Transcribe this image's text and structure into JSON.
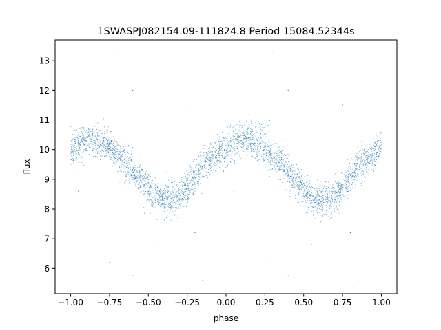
{
  "chart_data": {
    "type": "scatter",
    "title": "1SWASPJ082154.09-111824.8 Period 15084.52344s",
    "xlabel": "phase",
    "ylabel": "flux",
    "xlim": [
      -1.1,
      1.1
    ],
    "ylim": [
      5.15,
      13.7
    ],
    "x_ticks": [
      -1.0,
      -0.75,
      -0.5,
      -0.25,
      0.0,
      0.25,
      0.5,
      0.75,
      1.0
    ],
    "x_tick_labels": [
      "−1.00",
      "−0.75",
      "−0.50",
      "−0.25",
      "0.00",
      "0.25",
      "0.50",
      "0.75",
      "1.00"
    ],
    "y_ticks": [
      6,
      7,
      8,
      9,
      10,
      11,
      12,
      13
    ],
    "y_tick_labels": [
      "6",
      "7",
      "8",
      "9",
      "10",
      "11",
      "12",
      "13"
    ],
    "grid": false,
    "legend": "none",
    "point_color": "#1f77b4",
    "series": [
      {
        "x": [
          -1.0,
          -0.95,
          -0.9,
          -0.85,
          -0.8,
          -0.75,
          -0.7,
          -0.65,
          -0.6,
          -0.55,
          -0.5,
          -0.45,
          -0.4,
          -0.35,
          -0.3,
          -0.25,
          -0.2,
          -0.15,
          -0.1,
          -0.05,
          0.0,
          0.05,
          0.1,
          0.15,
          0.2,
          0.25,
          0.3,
          0.35,
          0.4,
          0.45,
          0.5,
          0.55,
          0.6,
          0.65,
          0.7,
          0.75,
          0.8,
          0.85,
          0.9,
          0.95,
          1.0
        ],
        "y": [
          10.0,
          10.2,
          10.3,
          10.3,
          10.2,
          10.1,
          9.8,
          9.6,
          9.3,
          9.0,
          8.6,
          8.4,
          8.3,
          8.3,
          8.4,
          8.7,
          9.1,
          9.4,
          9.7,
          9.9,
          10.0,
          10.2,
          10.3,
          10.3,
          10.2,
          10.1,
          9.8,
          9.6,
          9.3,
          9.0,
          8.6,
          8.4,
          8.3,
          8.3,
          8.4,
          8.7,
          9.1,
          9.4,
          9.7,
          9.9,
          10.0
        ]
      }
    ],
    "outliers": [
      {
        "x": -0.7,
        "y": 13.3
      },
      {
        "x": 0.3,
        "y": 13.3
      },
      {
        "x": -0.6,
        "y": 12.0
      },
      {
        "x": 0.4,
        "y": 12.0
      },
      {
        "x": -0.25,
        "y": 11.5
      },
      {
        "x": 0.75,
        "y": 11.5
      },
      {
        "x": -0.45,
        "y": 6.8
      },
      {
        "x": 0.55,
        "y": 6.8
      },
      {
        "x": -0.75,
        "y": 6.2
      },
      {
        "x": 0.25,
        "y": 6.2
      },
      {
        "x": -0.15,
        "y": 5.6
      },
      {
        "x": 0.85,
        "y": 5.6
      },
      {
        "x": -0.6,
        "y": 5.75
      },
      {
        "x": 0.4,
        "y": 5.75
      },
      {
        "x": -0.95,
        "y": 8.6
      },
      {
        "x": 0.05,
        "y": 8.6
      },
      {
        "x": -0.2,
        "y": 7.2
      },
      {
        "x": 0.8,
        "y": 7.2
      }
    ]
  }
}
